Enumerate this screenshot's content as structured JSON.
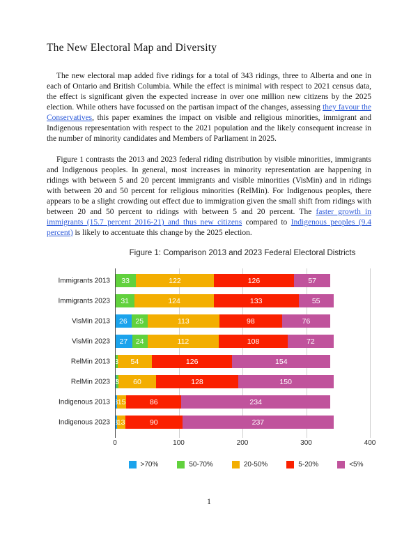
{
  "page": {
    "number": "1"
  },
  "document": {
    "title": "The New Electoral Map and Diversity",
    "link_color": "#2b59d9",
    "paragraphs": [
      {
        "segments": [
          {
            "link": false,
            "text": "The new electoral map added five ridings for a total of 343 ridings, three to Alberta and one in each of Ontario and British Columbia. While the effect is minimal with respect to 2021 census data, the effect is significant given the expected increase in over one million new citizens by the 2025 election. While others have focussed on the partisan impact of the changes, assessing "
          },
          {
            "link": true,
            "text": "they favour the Conservatives"
          },
          {
            "link": false,
            "text": ", this paper examines the impact on visible and religious minorities, immigrant and Indigenous representation with respect to the 2021 population and the likely consequent increase in the number of minority candidates and Members of Parliament in 2025."
          }
        ]
      },
      {
        "segments": [
          {
            "link": false,
            "text": "Figure 1 contrasts the 2013 and 2023 federal riding distribution by visible minorities, immigrants and Indigenous peoples. In general, most increases in minority representation are happening in ridings with between 5 and 20 percent immigrants and visible minorities (VisMin) and in ridings with between 20 and 50 percent for religious minorities (RelMin). For Indigenous peoples, there appears to be a slight crowding out effect due to immigration given the small shift from ridings with between 20 and 50 percent to ridings with between 5 and 20 percent. The "
          },
          {
            "link": true,
            "text": "faster growth in immigrants (15.7 percent 2016-21) and thus new citizens"
          },
          {
            "link": false,
            "text": " compared to "
          },
          {
            "link": true,
            "text": "Indigenous peoples (9.4 percent)"
          },
          {
            "link": false,
            "text": " is likely to accentuate this change by the 2025 election."
          }
        ]
      }
    ]
  },
  "chart_data": {
    "type": "bar",
    "stacked": true,
    "orientation": "horizontal",
    "title": "Figure 1: Comparison 2013 and 2023 Federal Electoral Districts",
    "categories": [
      "Immigrants 2013",
      "Immigrants 2023",
      "VisMin 2013",
      "VisMin 2023",
      "RelMin 2013",
      "RelMin 2023",
      "Indigenous 2013",
      "Indigenous 2023"
    ],
    "series": [
      {
        "name": ">70%",
        "color": "#1ba3ec",
        "values": [
          0,
          0,
          26,
          27,
          1,
          2,
          3,
          3
        ]
      },
      {
        "name": "50-70%",
        "color": "#61d13d",
        "values": [
          33,
          31,
          25,
          24,
          3,
          3,
          0,
          0
        ]
      },
      {
        "name": "20-50%",
        "color": "#f3ae01",
        "values": [
          122,
          124,
          113,
          112,
          54,
          60,
          15,
          13
        ]
      },
      {
        "name": "5-20%",
        "color": "#fa2000",
        "values": [
          126,
          133,
          98,
          108,
          126,
          128,
          86,
          90
        ]
      },
      {
        "name": "<5%",
        "color": "#c0539c",
        "values": [
          57,
          55,
          76,
          72,
          154,
          150,
          234,
          237
        ]
      }
    ],
    "totals": {
      "2013": 338,
      "2023": 343
    },
    "xlabel": "",
    "ylabel": "",
    "xlim": [
      0,
      400
    ],
    "x_ticks": [
      "0",
      "100",
      "200",
      "300",
      "400"
    ],
    "grid": true,
    "legend_position": "bottom",
    "gridline_color": "#cfcfcf",
    "axis_line_color": "#4a4a4a",
    "value_label_color": "#ffffff"
  }
}
